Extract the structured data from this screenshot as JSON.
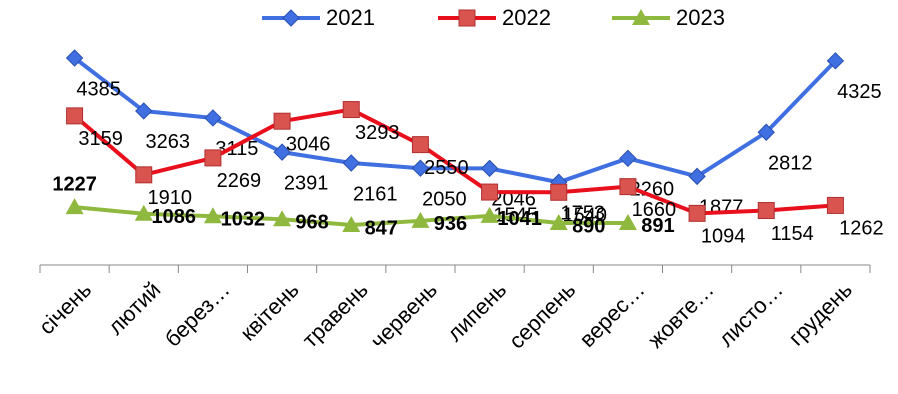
{
  "chart_data": {
    "type": "line",
    "categories": [
      "січень",
      "лютий",
      "берез…",
      "квітень",
      "травень",
      "червень",
      "липень",
      "серпень",
      "верес…",
      "жовте…",
      "листо…",
      "грудень"
    ],
    "series": [
      {
        "name": "2021",
        "color": "#3f6fe0",
        "marker": "diamond",
        "values": [
          4385,
          3263,
          3115,
          2391,
          2161,
          2050,
          2046,
          1753,
          2260,
          1877,
          2812,
          4325
        ]
      },
      {
        "name": "2022",
        "color": "#e8101c",
        "marker": "square",
        "values": [
          3159,
          1910,
          2269,
          3046,
          3293,
          2550,
          1545,
          1540,
          1660,
          1094,
          1154,
          1262
        ]
      },
      {
        "name": "2023",
        "color": "#8fb83f",
        "marker": "triangle",
        "bold_labels": true,
        "values": [
          1227,
          1086,
          1032,
          968,
          847,
          936,
          1041,
          890,
          891,
          null,
          null,
          null
        ]
      }
    ]
  }
}
